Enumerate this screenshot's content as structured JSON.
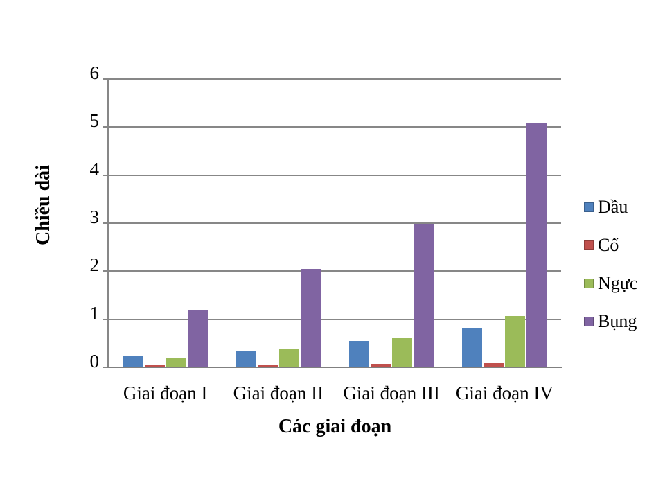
{
  "chart_data": {
    "type": "bar",
    "title": "",
    "xlabel": "Các giai đoạn",
    "ylabel": "Chiều dài",
    "ylim": [
      0,
      6
    ],
    "yticks": [
      0,
      1,
      2,
      3,
      4,
      5,
      6
    ],
    "grid": true,
    "legend_position": "right",
    "categories": [
      "Giai đoạn I",
      "Giai đoạn II",
      "Giai đoạn III",
      "Giai đoạn IV"
    ],
    "series": [
      {
        "name": "Đầu",
        "color": "#4F81BD",
        "values": [
          0.25,
          0.35,
          0.55,
          0.83
        ]
      },
      {
        "name": "Cổ",
        "color": "#C0504D",
        "values": [
          0.05,
          0.06,
          0.08,
          0.09
        ]
      },
      {
        "name": "Ngực",
        "color": "#9BBB59",
        "values": [
          0.19,
          0.38,
          0.6,
          1.07
        ]
      },
      {
        "name": "Bụng",
        "color": "#8064A2",
        "values": [
          1.2,
          2.05,
          2.98,
          5.08
        ]
      }
    ]
  }
}
